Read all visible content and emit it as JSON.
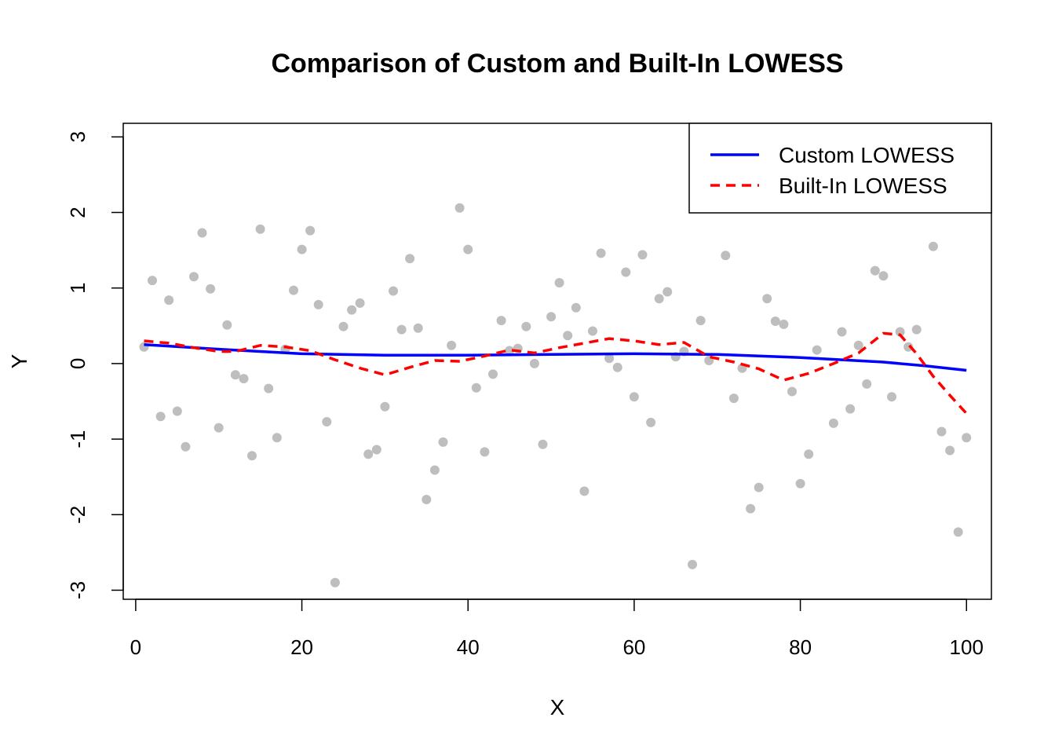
{
  "chart_data": {
    "type": "scatter",
    "title": "Comparison of Custom and Built-In LOWESS",
    "xlabel": "X",
    "ylabel": "Y",
    "xlim": [
      -1.5,
      103
    ],
    "ylim": [
      -3.12,
      3.18
    ],
    "xticks": [
      0,
      20,
      40,
      60,
      80,
      100
    ],
    "yticks": [
      -3,
      -2,
      -1,
      0,
      1,
      2,
      3
    ],
    "grid": false,
    "legend_position": "top-right",
    "points": {
      "color": "#BEBEBE",
      "x": [
        1,
        2,
        3,
        4,
        5,
        6,
        7,
        8,
        9,
        10,
        11,
        12,
        13,
        14,
        15,
        16,
        17,
        18,
        19,
        20,
        21,
        22,
        23,
        24,
        25,
        26,
        27,
        28,
        29,
        30,
        31,
        32,
        33,
        34,
        35,
        36,
        37,
        38,
        39,
        40,
        41,
        42,
        43,
        44,
        45,
        46,
        47,
        48,
        49,
        50,
        51,
        52,
        53,
        54,
        55,
        56,
        57,
        58,
        59,
        60,
        61,
        62,
        63,
        64,
        65,
        66,
        67,
        68,
        69,
        70,
        71,
        72,
        73,
        74,
        75,
        76,
        77,
        78,
        79,
        80,
        81,
        82,
        83,
        84,
        85,
        86,
        87,
        88,
        89,
        90,
        91,
        92,
        93,
        94,
        95,
        96,
        97,
        98,
        99,
        100
      ],
      "y": [
        0.22,
        1.1,
        -0.7,
        0.84,
        -0.63,
        -1.1,
        1.15,
        1.73,
        0.99,
        -0.85,
        0.51,
        -0.15,
        -0.2,
        -1.22,
        1.78,
        -0.33,
        -0.98,
        0.19,
        0.97,
        1.51,
        1.76,
        0.78,
        -0.77,
        -2.9,
        0.49,
        0.71,
        0.8,
        -1.2,
        -1.14,
        -0.57,
        0.96,
        0.45,
        1.39,
        0.47,
        -1.8,
        -1.41,
        -1.04,
        0.24,
        2.06,
        1.51,
        -0.32,
        -1.17,
        -0.14,
        0.57,
        0.17,
        0.2,
        0.49,
        0.0,
        -1.07,
        0.62,
        1.07,
        0.37,
        0.74,
        -1.69,
        0.43,
        1.46,
        0.07,
        -0.05,
        1.21,
        -0.44,
        1.44,
        -0.78,
        0.86,
        0.95,
        0.09,
        0.16,
        -2.66,
        0.57,
        0.04,
        null,
        1.43,
        -0.46,
        -0.06,
        -1.92,
        -1.64,
        0.86,
        0.56,
        0.52,
        -0.37,
        -1.59,
        -1.2,
        0.18,
        null,
        -0.79,
        0.42,
        -0.6,
        0.24,
        -0.27,
        1.23,
        1.16,
        -0.44,
        0.42,
        0.22,
        0.45,
        null,
        1.55,
        -0.9,
        -1.15,
        -2.23,
        -0.98
      ]
    },
    "series": [
      {
        "name": "Custom LOWESS",
        "color": "#0000FF",
        "dash": "solid",
        "x": [
          1,
          10,
          20,
          30,
          40,
          50,
          60,
          70,
          80,
          90,
          95,
          100
        ],
        "y": [
          0.25,
          0.19,
          0.13,
          0.11,
          0.11,
          0.12,
          0.13,
          0.12,
          0.08,
          0.02,
          -0.03,
          -0.09
        ]
      },
      {
        "name": "Built-In LOWESS",
        "color": "#FF0000",
        "dash": "dashed",
        "x": [
          1,
          4,
          7,
          10,
          12,
          15,
          18,
          21,
          24,
          27,
          30,
          33,
          36,
          39,
          42,
          45,
          48,
          51,
          54,
          57,
          60,
          63,
          66,
          69,
          72,
          75,
          78,
          81,
          84,
          87,
          90,
          92,
          94,
          96,
          98,
          100
        ],
        "y": [
          0.3,
          0.27,
          0.21,
          0.16,
          0.16,
          0.24,
          0.22,
          0.17,
          0.05,
          -0.06,
          -0.15,
          -0.05,
          0.04,
          0.03,
          0.1,
          0.18,
          0.14,
          0.21,
          0.27,
          0.33,
          0.3,
          0.25,
          0.28,
          0.09,
          0.02,
          -0.07,
          -0.22,
          -0.13,
          0.0,
          0.14,
          0.4,
          0.38,
          0.13,
          -0.17,
          -0.42,
          -0.66
        ]
      }
    ]
  }
}
